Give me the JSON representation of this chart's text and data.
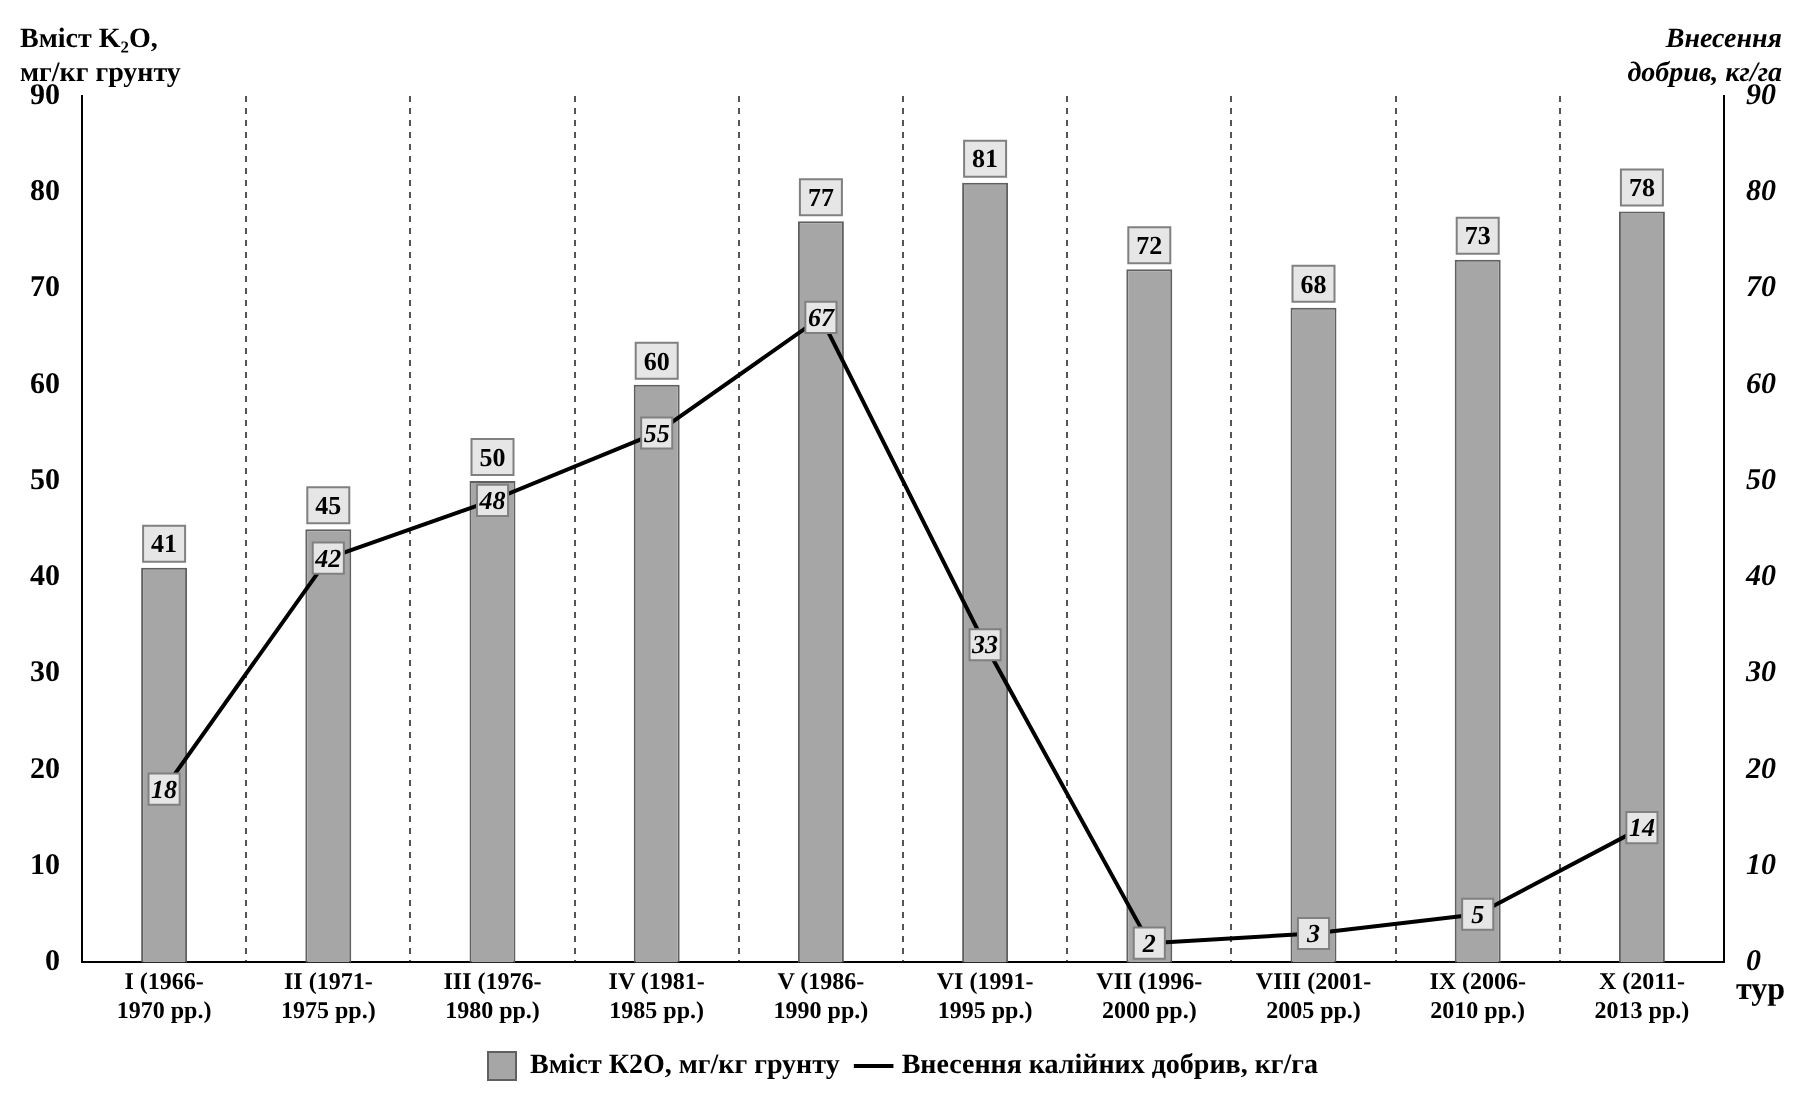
{
  "chart_data": {
    "type": "bar",
    "xlabel": "тур",
    "ylabel": "Вміст K₂O, мг/кг грунту",
    "y2label": "Внесення добрив, кг/га",
    "categories": [
      "I (1966-1970 рр.)",
      "II (1971-1975 рр.)",
      "III (1976-1980 рр.)",
      "IV (1981-1985 рр.)",
      "V (1986-1990 рр.)",
      "VI (1991-1995 рр.)",
      "VII (1996-2000 рр.)",
      "VIII (2001-2005 рр.)",
      "IX (2006-2010 рр.)",
      "X (2011-2013 рр.)"
    ],
    "series": [
      {
        "name": "Вміст К2О, мг/кг грунту",
        "color": "#a6a6a6",
        "values": [
          41,
          45,
          50,
          60,
          77,
          81,
          72,
          68,
          73,
          78
        ]
      },
      {
        "name": "Внесення калійних добрив, кг/га",
        "type": "line",
        "axis": "y2",
        "marker": "square",
        "color": "#000000",
        "values": [
          18,
          42,
          48,
          55,
          67,
          33,
          2,
          3,
          5,
          14
        ]
      }
    ],
    "ylim": [
      0,
      90
    ],
    "yticks": [
      0,
      10,
      20,
      30,
      40,
      50,
      60,
      70,
      80,
      90
    ],
    "y2lim": [
      0,
      90
    ],
    "y2ticks": [
      0,
      10,
      20,
      30,
      40,
      50,
      60,
      70,
      80,
      90
    ],
    "grid": "x",
    "legend": "bottom",
    "data_labels": true
  }
}
